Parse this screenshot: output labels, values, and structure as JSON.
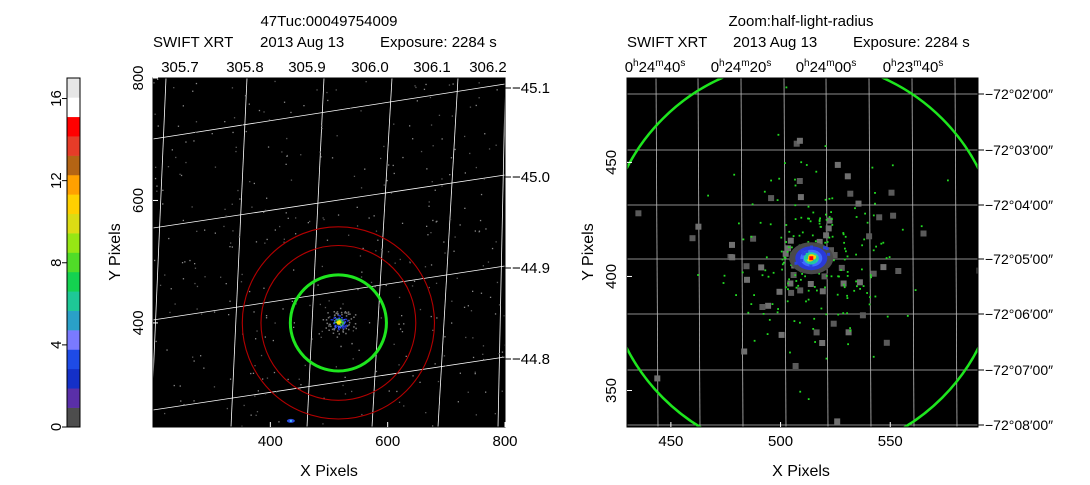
{
  "colorbar": {
    "ticks": [
      "0",
      "4",
      "8",
      "12",
      "16"
    ],
    "colors": [
      "#4d4d4d",
      "#5a2fa8",
      "#1430c8",
      "#1e4be6",
      "#7a7aff",
      "#2aa0c8",
      "#1ec896",
      "#14d250",
      "#50dc28",
      "#96e614",
      "#dcdc14",
      "#ffd000",
      "#ffa000",
      "#b46414",
      "#e63c28",
      "#ff0000",
      "#ffffff",
      "#e6e6e6"
    ]
  },
  "left": {
    "title_line1": "47Tuc:00049754009",
    "title_line2_mission": "SWIFT XRT",
    "title_line2_date": "2013 Aug 13",
    "title_line2_exposure": "Exposure: 2284 s",
    "xlabel": "X Pixels",
    "ylabel": "Y Pixels",
    "bottom_ticks": [
      "400",
      "600",
      "800"
    ],
    "left_ticks": [
      "400",
      "600",
      "800"
    ],
    "top_ticks": [
      "305.7",
      "305.8",
      "305.9",
      "306.0",
      "306.1",
      "306.2"
    ],
    "right_ticks": [
      "−45.1",
      "−45.0",
      "−44.9",
      "−44.8"
    ],
    "xlim": [
      200,
      800
    ],
    "ylim": [
      230,
      800
    ]
  },
  "right": {
    "title_line1": "Zoom:half-light-radius",
    "title_line2_mission": "SWIFT XRT",
    "title_line2_date": "2013 Aug 13",
    "title_line2_exposure": "Exposure: 2284 s",
    "xlabel": "X Pixels",
    "ylabel": "Y Pixels",
    "bottom_ticks": [
      "450",
      "500",
      "550"
    ],
    "left_ticks": [
      "350",
      "400",
      "450"
    ],
    "top_ticks": [
      {
        "h": "0",
        "m": "24",
        "s": "40"
      },
      {
        "h": "0",
        "m": "24",
        "s": "20"
      },
      {
        "h": "0",
        "m": "24",
        "s": "00"
      },
      {
        "h": "0",
        "m": "23",
        "s": "40"
      }
    ],
    "right_ticks": [
      "−72°02′00″",
      "−72°03′00″",
      "−72°04′00″",
      "−72°05′00″",
      "−72°06′00″",
      "−72°07′00″",
      "−72°08′00″"
    ],
    "xlim": [
      430,
      590
    ],
    "ylim": [
      334,
      487
    ]
  },
  "chart_data": [
    {
      "type": "heatmap",
      "title": "47Tuc:00049754009",
      "subtitle": "SWIFT XRT   2013 Aug 13   Exposure: 2284 s",
      "xlabel": "X Pixels",
      "ylabel": "Y Pixels",
      "xlim": [
        200,
        800
      ],
      "ylim": [
        230,
        800
      ],
      "colorbar_range": [
        0,
        17
      ],
      "circles_pixels": [
        {
          "cx": 516,
          "cy": 400,
          "r": 90,
          "color": "green"
        },
        {
          "cx": 516,
          "cy": 400,
          "r": 145,
          "color": "darkred"
        },
        {
          "cx": 516,
          "cy": 400,
          "r": 180,
          "color": "darkred"
        }
      ],
      "sources": [
        {
          "x": 516,
          "y": 402
        },
        {
          "x": 435,
          "y": 240
        }
      ],
      "grid": true
    },
    {
      "type": "heatmap",
      "title": "Zoom:half-light-radius",
      "subtitle": "SWIFT XRT   2013 Aug 13   Exposure: 2284 s",
      "xlabel": "X Pixels",
      "ylabel": "Y Pixels",
      "xlim": [
        430,
        590
      ],
      "ylim": [
        334,
        487
      ],
      "circles_pixels": [
        {
          "cx": 510,
          "cy": 408,
          "r": 90,
          "color": "green"
        }
      ],
      "sources": [
        {
          "x": 514,
          "y": 408
        }
      ],
      "grid": true
    }
  ]
}
